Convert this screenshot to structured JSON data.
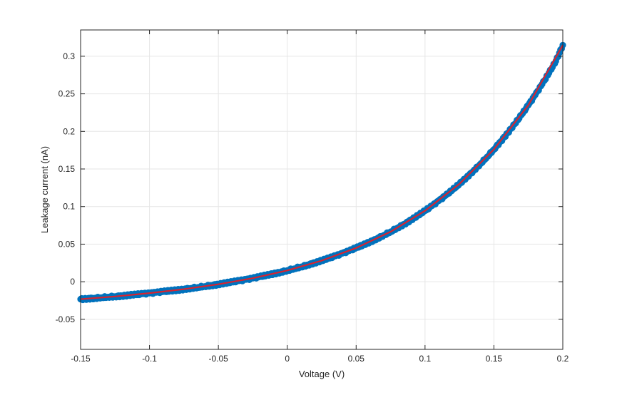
{
  "chart_data": {
    "type": "scatter",
    "title": "",
    "xlabel": "Voltage (V)",
    "ylabel": "Leakage current (nA)",
    "xlim": [
      -0.15,
      0.2
    ],
    "ylim": [
      -0.09,
      0.335
    ],
    "x_ticks": [
      -0.15,
      -0.1,
      -0.05,
      0,
      0.05,
      0.1,
      0.15,
      0.2
    ],
    "x_tick_labels": [
      "-0.15",
      "-0.1",
      "-0.05",
      "0",
      "0.05",
      "0.1",
      "0.15",
      "0.2"
    ],
    "y_ticks": [
      -0.05,
      0,
      0.05,
      0.1,
      0.15,
      0.2,
      0.25,
      0.3
    ],
    "y_tick_labels": [
      "-0.05",
      "0",
      "0.05",
      "0.1",
      "0.15",
      "0.2",
      "0.25",
      "0.3"
    ],
    "grid": true,
    "series": [
      {
        "kind": "scatter",
        "color": "#0072bd",
        "points": [
          [
            -0.15,
            -0.0232
          ],
          [
            -0.145,
            -0.0225
          ],
          [
            -0.14,
            -0.0218
          ],
          [
            -0.135,
            -0.0211
          ],
          [
            -0.13,
            -0.0203
          ],
          [
            -0.125,
            -0.0196
          ],
          [
            -0.12,
            -0.0188
          ],
          [
            -0.115,
            -0.0179
          ],
          [
            -0.11,
            -0.0171
          ],
          [
            -0.105,
            -0.0162
          ],
          [
            -0.1,
            -0.0152
          ],
          [
            -0.095,
            -0.0142
          ],
          [
            -0.09,
            -0.0132
          ],
          [
            -0.085,
            -0.0122
          ],
          [
            -0.08,
            -0.0111
          ],
          [
            -0.075,
            -0.0099
          ],
          [
            -0.07,
            -0.0087
          ],
          [
            -0.065,
            -0.0075
          ],
          [
            -0.06,
            -0.0062
          ],
          [
            -0.055,
            -0.0048
          ],
          [
            -0.05,
            -0.0034
          ],
          [
            -0.045,
            -0.0019
          ],
          [
            -0.04,
            -0.0004
          ],
          [
            -0.035,
            0.0012
          ],
          [
            -0.03,
            0.0029
          ],
          [
            -0.025,
            0.0047
          ],
          [
            -0.02,
            0.0066
          ],
          [
            -0.015,
            0.0085
          ],
          [
            -0.01,
            0.0106
          ],
          [
            -0.005,
            0.0127
          ],
          [
            0,
            0.015
          ],
          [
            0.005,
            0.0174
          ],
          [
            0.01,
            0.0198
          ],
          [
            0.015,
            0.0225
          ],
          [
            0.02,
            0.0252
          ],
          [
            0.025,
            0.0281
          ],
          [
            0.03,
            0.0311
          ],
          [
            0.035,
            0.0343
          ],
          [
            0.04,
            0.0377
          ],
          [
            0.045,
            0.0412
          ],
          [
            0.05,
            0.0449
          ],
          [
            0.055,
            0.0488
          ],
          [
            0.06,
            0.0529
          ],
          [
            0.065,
            0.0572
          ],
          [
            0.07,
            0.0618
          ],
          [
            0.075,
            0.0665
          ],
          [
            0.08,
            0.0716
          ],
          [
            0.085,
            0.0768
          ],
          [
            0.09,
            0.0824
          ],
          [
            0.095,
            0.0883
          ],
          [
            0.1,
            0.0944
          ],
          [
            0.105,
            0.1009
          ],
          [
            0.11,
            0.1077
          ],
          [
            0.115,
            0.1148
          ],
          [
            0.12,
            0.1223
          ],
          [
            0.125,
            0.1302
          ],
          [
            0.13,
            0.1385
          ],
          [
            0.135,
            0.1472
          ],
          [
            0.14,
            0.1564
          ],
          [
            0.145,
            0.166
          ],
          [
            0.15,
            0.1761
          ],
          [
            0.155,
            0.1868
          ],
          [
            0.16,
            0.1979
          ],
          [
            0.165,
            0.2097
          ],
          [
            0.17,
            0.222
          ],
          [
            0.175,
            0.235
          ],
          [
            0.18,
            0.2486
          ],
          [
            0.185,
            0.2629
          ],
          [
            0.19,
            0.2779
          ],
          [
            0.195,
            0.2937
          ],
          [
            0.2,
            0.3148
          ]
        ]
      },
      {
        "kind": "line",
        "color": "#d62430",
        "points": [
          [
            -0.15,
            -0.0232
          ],
          [
            -0.125,
            -0.0196
          ],
          [
            -0.1,
            -0.0152
          ],
          [
            -0.075,
            -0.0099
          ],
          [
            -0.05,
            -0.0034
          ],
          [
            -0.025,
            0.0047
          ],
          [
            0,
            0.015
          ],
          [
            0.025,
            0.0281
          ],
          [
            0.05,
            0.0449
          ],
          [
            0.075,
            0.0665
          ],
          [
            0.1,
            0.0944
          ],
          [
            0.125,
            0.1302
          ],
          [
            0.15,
            0.1761
          ],
          [
            0.175,
            0.235
          ],
          [
            0.2,
            0.3148
          ]
        ]
      }
    ]
  }
}
